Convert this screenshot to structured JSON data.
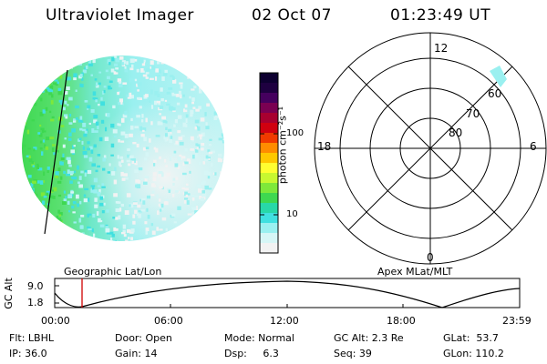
{
  "header": {
    "instrument": "Ultraviolet Imager",
    "date": "02 Oct 07",
    "time": "01:23:49 UT"
  },
  "colorbar": {
    "unit_label": "photon cm⁻²s⁻¹",
    "ticks": [
      "100",
      "10"
    ],
    "colors": [
      "#0d0030",
      "#1e0040",
      "#45005e",
      "#7a0052",
      "#a80030",
      "#d00010",
      "#f03a00",
      "#ff8c00",
      "#ffc800",
      "#ffff30",
      "#c8f830",
      "#7ee83a",
      "#3ed850",
      "#28d8a8",
      "#40e0e0",
      "#9af0f0",
      "#d6f6f6",
      "#f2f2f2"
    ]
  },
  "polar": {
    "labels": {
      "top": "12",
      "bottom": "0",
      "left": "18",
      "right": "6"
    },
    "rings": [
      "80",
      "70",
      "60"
    ]
  },
  "axis_labels": {
    "left_map": "Geographic Lat/Lon",
    "right_map": "Apex MLat/MLT"
  },
  "orbit_plot": {
    "ylabel": "GC Alt",
    "ymax": "9.0",
    "ymin": "1.8",
    "xticks": [
      "00:00",
      "06:00",
      "12:00",
      "18:00",
      "23:59"
    ],
    "marker_time": "01:23:49",
    "marker_color": "#d00000"
  },
  "info": {
    "flt": "Flt: LBHL",
    "ip": "IP: 36.0",
    "door": "Door: Open",
    "gain": "Gain: 14",
    "mode": "Mode: Normal",
    "dsp": "Dsp:     6.3",
    "gcalt": "GC Alt: 2.3 Re",
    "seq": "Seq: 39",
    "glat": "GLat:  53.7",
    "glon": "GLon: 110.2"
  }
}
